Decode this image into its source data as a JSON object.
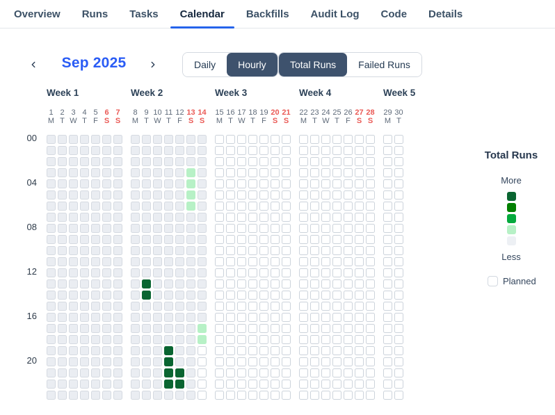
{
  "tabs": [
    {
      "label": "Overview",
      "active": false
    },
    {
      "label": "Runs",
      "active": false
    },
    {
      "label": "Tasks",
      "active": false
    },
    {
      "label": "Calendar",
      "active": true
    },
    {
      "label": "Backfills",
      "active": false
    },
    {
      "label": "Audit Log",
      "active": false
    },
    {
      "label": "Code",
      "active": false
    },
    {
      "label": "Details",
      "active": false
    }
  ],
  "calendar_nav": {
    "month": "Sep 2025",
    "prev": "chevron-left",
    "next": "chevron-right"
  },
  "view_toggle": {
    "options": [
      "Daily",
      "Hourly"
    ],
    "selected": "Hourly"
  },
  "metric_toggle": {
    "options": [
      "Total Runs",
      "Failed Runs"
    ],
    "selected": "Total Runs"
  },
  "hour_labels": [
    {
      "hour": 0,
      "label": "00"
    },
    {
      "hour": 4,
      "label": "04"
    },
    {
      "hour": 8,
      "label": "08"
    },
    {
      "hour": 12,
      "label": "12"
    },
    {
      "hour": 16,
      "label": "16"
    },
    {
      "hour": 20,
      "label": "20"
    }
  ],
  "weeks": [
    {
      "label": "Week 1",
      "days": [
        {
          "num": "1",
          "dow": "M",
          "weekend": false,
          "base": "past",
          "runs": {}
        },
        {
          "num": "2",
          "dow": "T",
          "weekend": false,
          "base": "past",
          "runs": {}
        },
        {
          "num": "3",
          "dow": "W",
          "weekend": false,
          "base": "past",
          "runs": {}
        },
        {
          "num": "4",
          "dow": "T",
          "weekend": false,
          "base": "past",
          "runs": {}
        },
        {
          "num": "5",
          "dow": "F",
          "weekend": false,
          "base": "past",
          "runs": {}
        },
        {
          "num": "6",
          "dow": "S",
          "weekend": true,
          "base": "past",
          "runs": {}
        },
        {
          "num": "7",
          "dow": "S",
          "weekend": true,
          "base": "past",
          "runs": {}
        }
      ]
    },
    {
      "label": "Week 2",
      "days": [
        {
          "num": "8",
          "dow": "M",
          "weekend": false,
          "base": "past",
          "runs": {}
        },
        {
          "num": "9",
          "dow": "T",
          "weekend": false,
          "base": "past",
          "runs": {
            "13": "high",
            "14": "high"
          }
        },
        {
          "num": "10",
          "dow": "W",
          "weekend": false,
          "base": "past",
          "runs": {}
        },
        {
          "num": "11",
          "dow": "T",
          "weekend": false,
          "base": "past",
          "runs": {
            "19": "high",
            "20": "high",
            "21": "high",
            "22": "high"
          }
        },
        {
          "num": "12",
          "dow": "F",
          "weekend": false,
          "base": "past",
          "runs": {
            "21": "high",
            "22": "high"
          }
        },
        {
          "num": "13",
          "dow": "S",
          "weekend": true,
          "base": "past",
          "runs": {
            "3": "low",
            "4": "low",
            "5": "low",
            "6": "low"
          }
        },
        {
          "num": "14",
          "dow": "S",
          "weekend": true,
          "base": "past",
          "runs": {
            "17": "low",
            "18": "low",
            "19": "planned",
            "20": "planned",
            "21": "planned",
            "22": "planned",
            "23": "planned"
          }
        }
      ]
    },
    {
      "label": "Week 3",
      "days": [
        {
          "num": "15",
          "dow": "M",
          "weekend": false,
          "base": "planned",
          "runs": {}
        },
        {
          "num": "16",
          "dow": "T",
          "weekend": false,
          "base": "planned",
          "runs": {}
        },
        {
          "num": "17",
          "dow": "W",
          "weekend": false,
          "base": "planned",
          "runs": {}
        },
        {
          "num": "18",
          "dow": "T",
          "weekend": false,
          "base": "planned",
          "runs": {}
        },
        {
          "num": "19",
          "dow": "F",
          "weekend": false,
          "base": "planned",
          "runs": {}
        },
        {
          "num": "20",
          "dow": "S",
          "weekend": true,
          "base": "planned",
          "runs": {}
        },
        {
          "num": "21",
          "dow": "S",
          "weekend": true,
          "base": "planned",
          "runs": {}
        }
      ]
    },
    {
      "label": "Week 4",
      "days": [
        {
          "num": "22",
          "dow": "M",
          "weekend": false,
          "base": "planned",
          "runs": {}
        },
        {
          "num": "23",
          "dow": "T",
          "weekend": false,
          "base": "planned",
          "runs": {}
        },
        {
          "num": "24",
          "dow": "W",
          "weekend": false,
          "base": "planned",
          "runs": {}
        },
        {
          "num": "25",
          "dow": "T",
          "weekend": false,
          "base": "planned",
          "runs": {}
        },
        {
          "num": "26",
          "dow": "F",
          "weekend": false,
          "base": "planned",
          "runs": {}
        },
        {
          "num": "27",
          "dow": "S",
          "weekend": true,
          "base": "planned",
          "runs": {}
        },
        {
          "num": "28",
          "dow": "S",
          "weekend": true,
          "base": "planned",
          "runs": {}
        }
      ]
    },
    {
      "label": "Week 5",
      "days": [
        {
          "num": "29",
          "dow": "M",
          "weekend": false,
          "base": "planned",
          "runs": {}
        },
        {
          "num": "30",
          "dow": "T",
          "weekend": false,
          "base": "planned",
          "runs": {}
        }
      ]
    }
  ],
  "legend": {
    "title": "Total Runs",
    "more": "More",
    "less": "Less",
    "planned": "Planned",
    "scale": [
      "#0a6531",
      "#028002",
      "#05aa3d",
      "#b7f1c6",
      "#edf0f4"
    ]
  },
  "colors": {
    "accent_blue": "#2563eb",
    "month_blue": "#2a5cf5",
    "navy_selected": "#3e526d",
    "weekend_red": "#ea5a56",
    "cell_past": "#eaedf2",
    "cell_planned": "#ffffff",
    "run_low": "#b7f1c6",
    "run_high": "#0a6531"
  }
}
